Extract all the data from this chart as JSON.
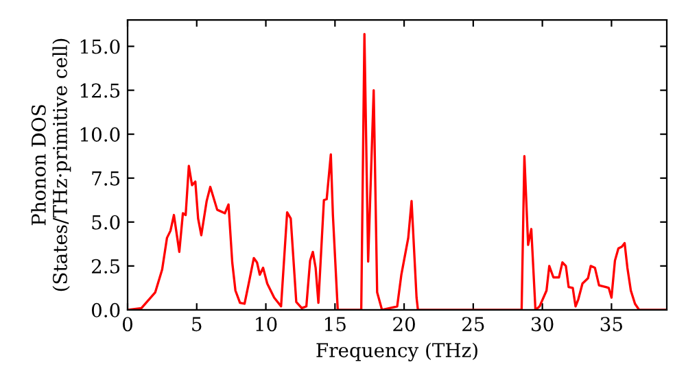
{
  "chart_data": {
    "type": "line",
    "xlabel": "Frequency (THz)",
    "ylabel": "Phonon DOS\n(States/THz·primitive cell)",
    "xlim": [
      0,
      39
    ],
    "ylim": [
      0,
      16.5
    ],
    "xticks": [
      0,
      5,
      10,
      15,
      20,
      25,
      30,
      35
    ],
    "yticks": [
      {
        "value": 0,
        "label": "0.0"
      },
      {
        "value": 2.5,
        "label": "2.5"
      },
      {
        "value": 5,
        "label": "5.0"
      },
      {
        "value": 7.5,
        "label": "7.5"
      },
      {
        "value": 10,
        "label": "10.0"
      },
      {
        "value": 12.5,
        "label": "12.5"
      },
      {
        "value": 15,
        "label": "15.0"
      }
    ],
    "grid": false,
    "marker": "none",
    "line_style": "solid",
    "series": [
      {
        "color": "#ff0000",
        "x": [
          0,
          1,
          2,
          2.5,
          2.85,
          3.1,
          3.35,
          3.74,
          4.0,
          4.2,
          4.43,
          4.66,
          4.9,
          5.1,
          5.33,
          5.72,
          5.98,
          6.48,
          7.04,
          7.3,
          7.57,
          7.8,
          8.13,
          8.46,
          8.8,
          9.13,
          9.36,
          9.56,
          9.8,
          10.1,
          10.6,
          11.1,
          11.54,
          11.8,
          12.2,
          12.6,
          12.93,
          13.2,
          13.4,
          13.6,
          13.8,
          14.2,
          14.4,
          14.7,
          14.85,
          15.2,
          16.9,
          17.13,
          17.4,
          17.8,
          18.05,
          18.4,
          19.5,
          19.8,
          20.3,
          20.54,
          20.9,
          21.0,
          28.5,
          28.7,
          28.97,
          29.2,
          29.5,
          29.8,
          30.3,
          30.5,
          30.8,
          31.2,
          31.45,
          31.7,
          31.9,
          32.2,
          32.4,
          32.6,
          32.9,
          33.3,
          33.5,
          33.8,
          34.1,
          34.6,
          34.8,
          35.0,
          35.25,
          35.5,
          35.75,
          35.95,
          36.15,
          36.4,
          36.7,
          37.0,
          39
        ],
        "values": [
          0,
          0.1,
          1.0,
          2.3,
          4.1,
          4.5,
          5.4,
          3.3,
          5.5,
          5.4,
          8.2,
          7.1,
          7.3,
          5.2,
          4.25,
          6.2,
          7.0,
          5.7,
          5.5,
          6.0,
          2.7,
          1.1,
          0.4,
          0.35,
          1.65,
          2.95,
          2.7,
          2.0,
          2.4,
          1.5,
          0.7,
          0.2,
          5.55,
          5.2,
          0.45,
          0.1,
          0.2,
          2.8,
          3.3,
          2.4,
          0.4,
          6.25,
          6.3,
          8.85,
          5.4,
          0,
          0,
          15.7,
          2.75,
          12.5,
          1.0,
          0,
          0.2,
          2.0,
          4.1,
          6.2,
          0.7,
          0,
          0,
          8.75,
          3.7,
          4.6,
          0,
          0.2,
          1.1,
          2.5,
          1.85,
          1.85,
          2.7,
          2.5,
          1.3,
          1.25,
          0.2,
          0.6,
          1.5,
          1.8,
          2.5,
          2.4,
          1.4,
          1.3,
          1.25,
          0.7,
          2.8,
          3.5,
          3.6,
          3.8,
          2.4,
          1.1,
          0.35,
          0,
          0
        ]
      }
    ]
  }
}
